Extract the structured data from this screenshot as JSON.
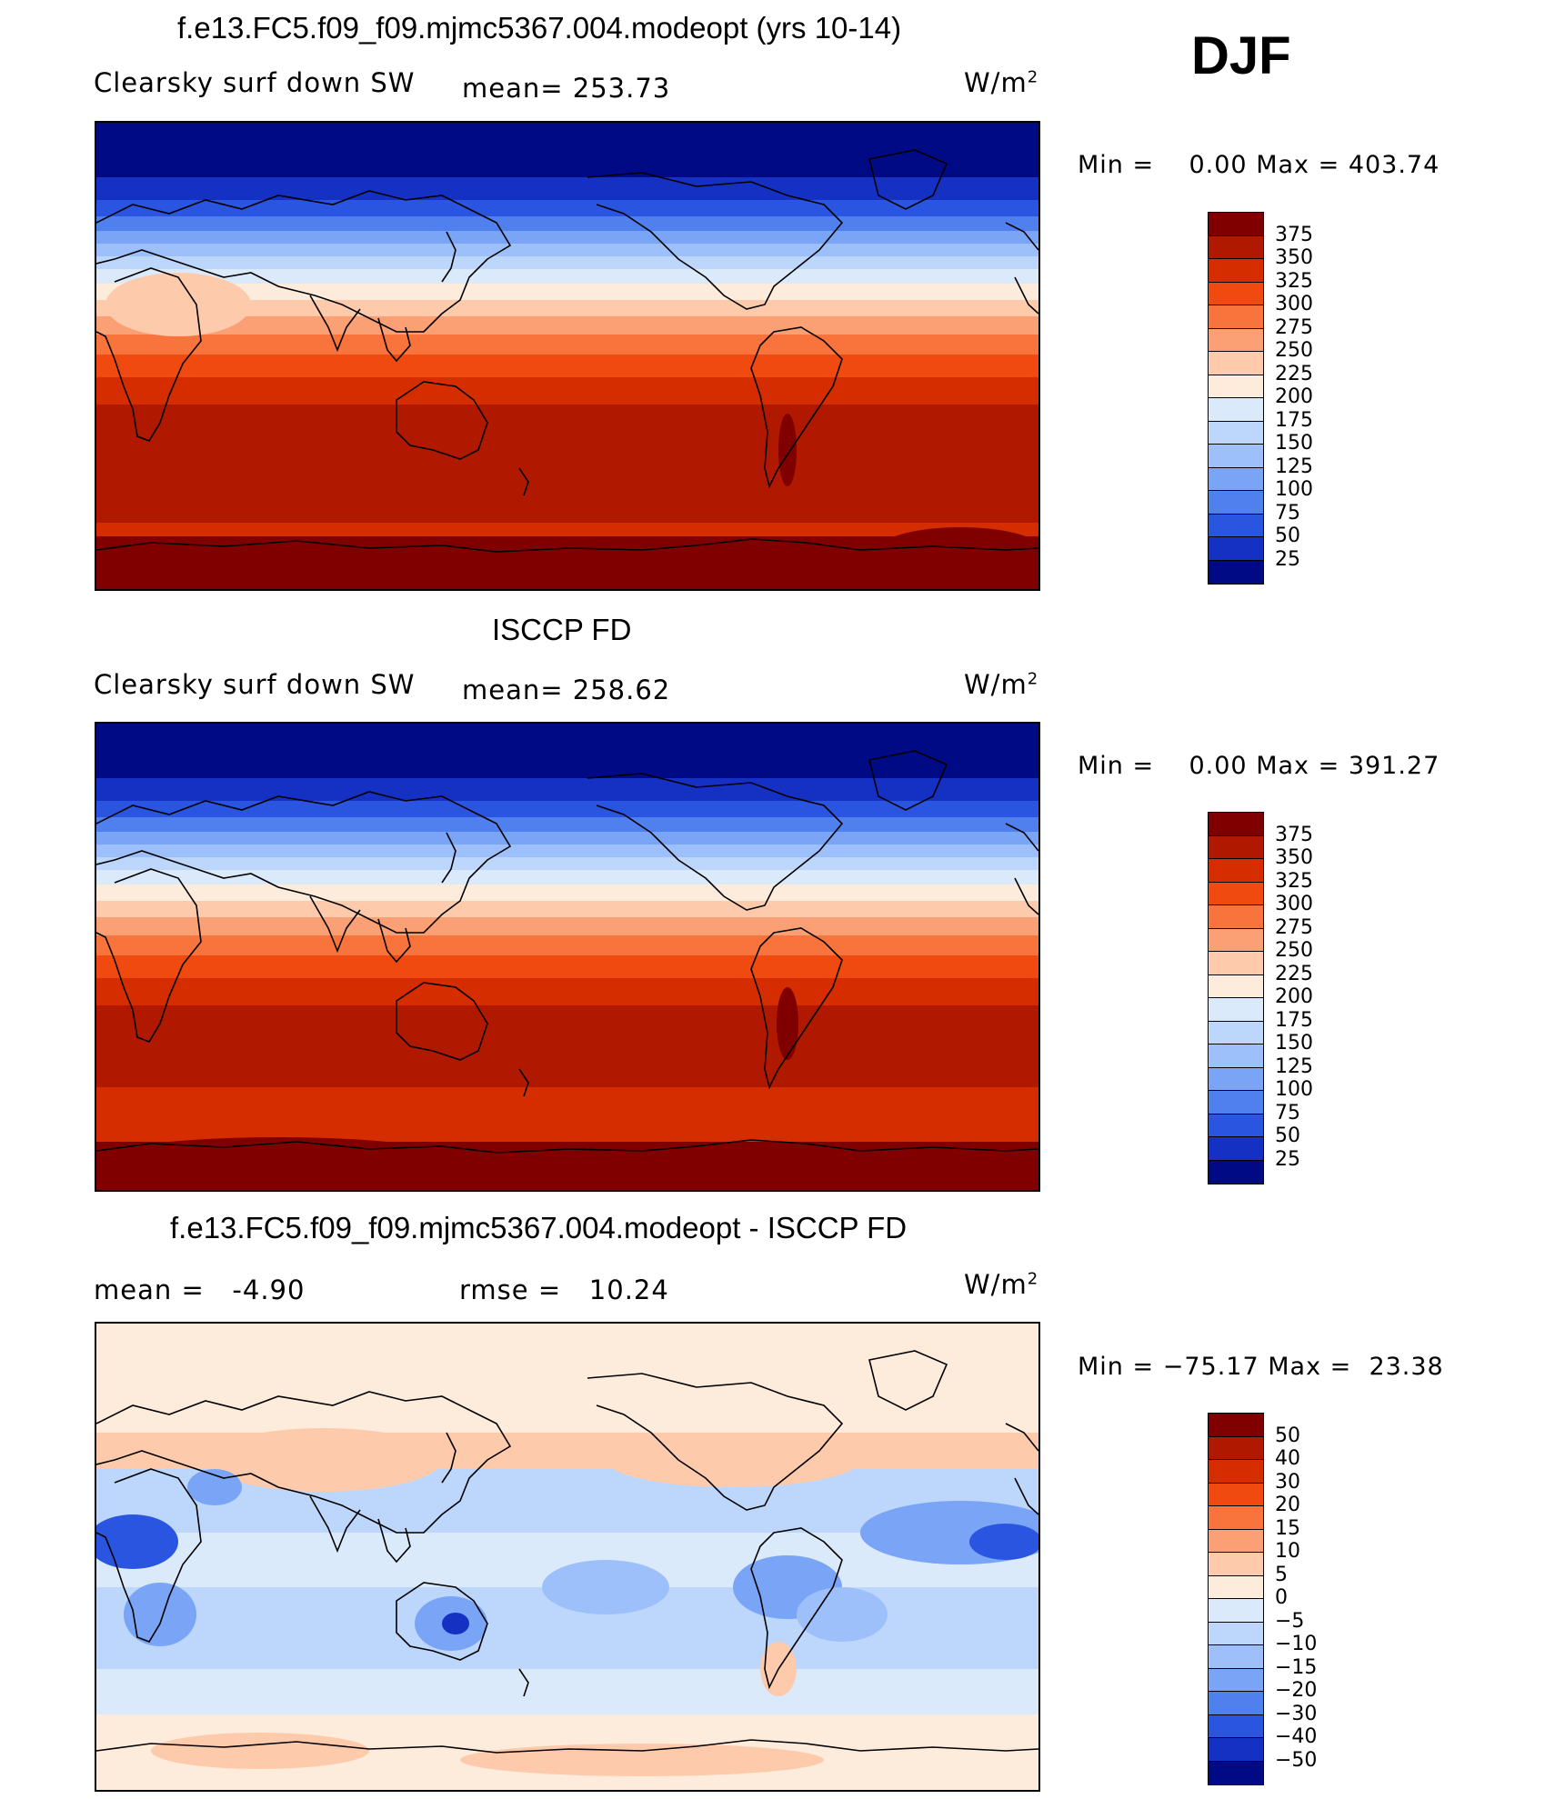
{
  "season": "DJF",
  "units": "W/m",
  "units_sup": "2",
  "panels": [
    {
      "id": "model",
      "title": "f.e13.FC5.f09_f09.mjmc5367.004.modeopt (yrs 10-14)",
      "left_label": "Clearsky surf down SW",
      "stat_label": "mean=",
      "stat_value": "253.73",
      "min_label": "Min =",
      "min_value": "0.00",
      "max_label": "Max =",
      "max_value": "403.74",
      "palette": "absolute"
    },
    {
      "id": "obs",
      "title": "ISCCP FD",
      "left_label": "Clearsky surf down SW",
      "stat_label": "mean=",
      "stat_value": "258.62",
      "min_label": "Min =",
      "min_value": "0.00",
      "max_label": "Max =",
      "max_value": "391.27",
      "palette": "absolute"
    },
    {
      "id": "diff",
      "title": "f.e13.FC5.f09_f09.mjmc5367.004.modeopt - ISCCP FD",
      "left_label": "mean =",
      "left_value": "-4.90",
      "stat_label": "rmse =",
      "stat_value": "10.24",
      "min_label": "Min =",
      "min_value": "−75.17",
      "max_label": "Max =",
      "max_value": "23.38",
      "palette": "difference"
    }
  ],
  "colorbars": {
    "absolute": {
      "labels": [
        "375",
        "350",
        "325",
        "300",
        "275",
        "250",
        "225",
        "200",
        "175",
        "150",
        "125",
        "100",
        "75",
        "50",
        "25"
      ],
      "colors": [
        "#800000",
        "#b01800",
        "#d52c00",
        "#f04a10",
        "#f8743c",
        "#fb9f74",
        "#fdcbac",
        "#fdebdc",
        "#dbeafb",
        "#bdd6fb",
        "#9ec0fa",
        "#7aa4f6",
        "#4f80ee",
        "#2a55e0",
        "#1431c4",
        "#000a85"
      ]
    },
    "difference": {
      "labels": [
        "50",
        "40",
        "30",
        "20",
        "15",
        "10",
        "5",
        "0",
        "−5",
        "−10",
        "−15",
        "−20",
        "−30",
        "−40",
        "−50"
      ],
      "colors": [
        "#800000",
        "#b01800",
        "#d52c00",
        "#f04a10",
        "#f8743c",
        "#fb9f74",
        "#fdcbac",
        "#fdebdc",
        "#dbeafb",
        "#bdd6fb",
        "#9ec0fa",
        "#7aa4f6",
        "#4f80ee",
        "#2a55e0",
        "#1431c4",
        "#000a85"
      ]
    }
  }
}
